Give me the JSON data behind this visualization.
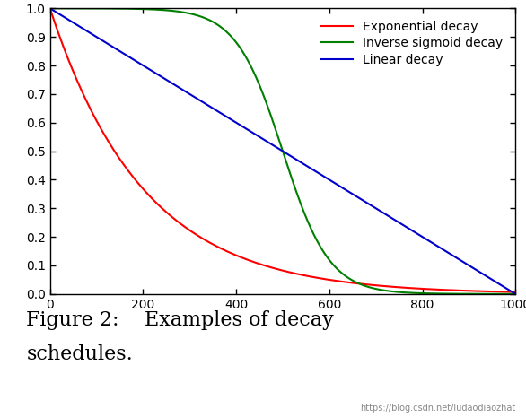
{
  "x_min": 0,
  "x_max": 1000,
  "y_min": 0,
  "y_max": 1,
  "x_ticks": [
    0,
    200,
    400,
    600,
    800,
    1000
  ],
  "y_ticks": [
    0,
    0.1,
    0.2,
    0.3,
    0.4,
    0.5,
    0.6,
    0.7,
    0.8,
    0.9,
    1
  ],
  "exp_color": "#ff0000",
  "sigmoid_color": "#008000",
  "linear_color": "#0000cc",
  "exp_label": "Exponential decay",
  "sigmoid_label": "Inverse sigmoid decay",
  "linear_label": "Linear decay",
  "exp_decay_rate": 0.005,
  "sigmoid_k": 0.02,
  "sigmoid_midpoint": 500,
  "total_steps": 1000,
  "legend_loc": "upper right",
  "legend_fontsize": 10,
  "tick_fontsize": 10,
  "line_width": 1.5,
  "background_color": "#ffffff",
  "caption_line1": "Figure 2:    Examples of decay",
  "caption_line2": "schedules.",
  "caption_fontsize": 16,
  "watermark": "https://blog.csdn.net/ludaodiaozhat",
  "watermark_fontsize": 7
}
